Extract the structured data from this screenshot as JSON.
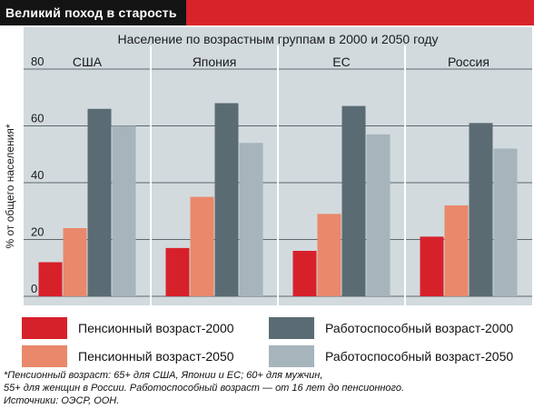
{
  "header": {
    "title": "Великий поход в старость"
  },
  "colors": {
    "header_red": "#d8232a",
    "header_black": "#141414",
    "plot_bg": "#d2dade",
    "grid": "#5f686c"
  },
  "chart_data": {
    "type": "bar",
    "title": "Население по возрастным группам в 2000 и 2050 году",
    "xlabel": "",
    "ylabel": "% от общего населения*",
    "ylim": [
      0,
      80
    ],
    "yticks": [
      0,
      20,
      40,
      60,
      80
    ],
    "grid": true,
    "categories": [
      "США",
      "Япония",
      "ЕС",
      "Россия"
    ],
    "series": [
      {
        "name": "Пенсионный возраст-2000",
        "color": "#d6212b",
        "values": [
          12,
          17,
          16,
          21
        ]
      },
      {
        "name": "Пенсионный возраст-2050",
        "color": "#e9886a",
        "values": [
          24,
          35,
          29,
          32
        ]
      },
      {
        "name": "Работоспособный возраст-2000",
        "color": "#5b6b74",
        "values": [
          66,
          68,
          67,
          61
        ]
      },
      {
        "name": "Работоспособный возраст-2050",
        "color": "#a6b4bc",
        "values": [
          60,
          54,
          57,
          52
        ]
      }
    ],
    "legend_position": "bottom"
  },
  "legend": {
    "items": [
      {
        "label": "Пенсионный возраст-2000",
        "color": "#d6212b"
      },
      {
        "label": "Работоспособный возраст-2000",
        "color": "#5b6b74"
      },
      {
        "label": "Пенсионный возраст-2050",
        "color": "#e9886a"
      },
      {
        "label": "Работоспособный возраст-2050",
        "color": "#a6b4bc"
      }
    ]
  },
  "footnote": {
    "line1": "*Пенсионный возраст: 65+ для США, Японии и ЕС; 60+ для мужчин,",
    "line2": "55+ для женщин в России. Работоспособный возраст — от 16 лет до пенсионного.",
    "line3": "Источники: ОЭСР, ООН."
  }
}
